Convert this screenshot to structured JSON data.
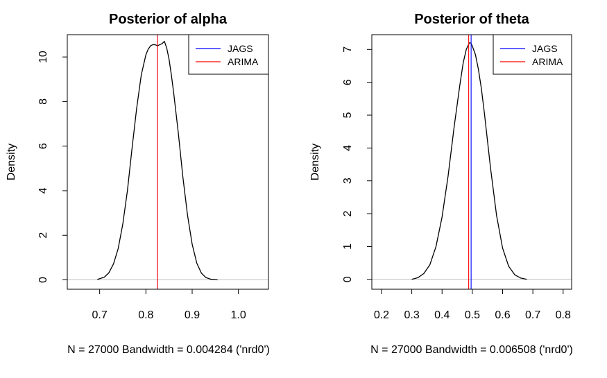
{
  "chart_data": [
    {
      "type": "line",
      "title": "Posterior of alpha",
      "xlabel": "N = 27000   Bandwidth = 0.004284 ('nrd0')",
      "ylabel": "Density",
      "xlim": [
        0.63,
        1.065
      ],
      "ylim": [
        -0.42,
        11.0
      ],
      "xticks": [
        "0.7",
        "0.8",
        "0.9",
        "1.0"
      ],
      "xtick_values": [
        0.7,
        0.8,
        0.9,
        1.0
      ],
      "yticks": [
        "0",
        "2",
        "4",
        "6",
        "8",
        "10"
      ],
      "ytick_values": [
        0,
        2,
        4,
        6,
        8,
        10
      ],
      "grid": false,
      "legend_position": "top-right",
      "legend": [
        {
          "label": "JAGS",
          "color": "#0000ff"
        },
        {
          "label": "ARIMA",
          "color": "#ff0000"
        }
      ],
      "baseline_color": "#bebebe",
      "density_color": "#000000",
      "vlines": [
        {
          "name": "JAGS",
          "x": 0.825,
          "color": "#0000ff"
        },
        {
          "name": "ARIMA",
          "x": 0.825,
          "color": "#ff0000"
        }
      ],
      "x": [
        0.695,
        0.71,
        0.72,
        0.73,
        0.74,
        0.75,
        0.76,
        0.77,
        0.78,
        0.79,
        0.8,
        0.805,
        0.81,
        0.815,
        0.82,
        0.825,
        0.83,
        0.835,
        0.84,
        0.845,
        0.85,
        0.855,
        0.86,
        0.87,
        0.88,
        0.89,
        0.9,
        0.91,
        0.92,
        0.93,
        0.94,
        0.955
      ],
      "y": [
        0.02,
        0.12,
        0.32,
        0.72,
        1.4,
        2.5,
        4.0,
        5.9,
        7.7,
        9.2,
        10.1,
        10.35,
        10.5,
        10.55,
        10.55,
        10.5,
        10.55,
        10.6,
        10.7,
        10.4,
        9.9,
        9.2,
        8.4,
        6.6,
        4.6,
        2.9,
        1.6,
        0.75,
        0.3,
        0.1,
        0.03,
        0.0
      ]
    },
    {
      "type": "line",
      "title": "Posterior of theta",
      "xlabel": "N = 27000   Bandwidth = 0.006508 ('nrd0')",
      "ylabel": "Density",
      "xlim": [
        0.168,
        0.828
      ],
      "ylim": [
        -0.3,
        7.45
      ],
      "xticks": [
        "0.2",
        "0.3",
        "0.4",
        "0.5",
        "0.6",
        "0.7",
        "0.8"
      ],
      "xtick_values": [
        0.2,
        0.3,
        0.4,
        0.5,
        0.6,
        0.7,
        0.8
      ],
      "yticks": [
        "0",
        "1",
        "2",
        "3",
        "4",
        "5",
        "6",
        "7"
      ],
      "ytick_values": [
        0,
        1,
        2,
        3,
        4,
        5,
        6,
        7
      ],
      "grid": false,
      "legend_position": "top-right",
      "legend": [
        {
          "label": "JAGS",
          "color": "#0000ff"
        },
        {
          "label": "ARIMA",
          "color": "#ff0000"
        }
      ],
      "baseline_color": "#bebebe",
      "density_color": "#000000",
      "vlines": [
        {
          "name": "JAGS",
          "x": 0.496,
          "color": "#0000ff"
        },
        {
          "name": "ARIMA",
          "x": 0.488,
          "color": "#ff0000"
        }
      ],
      "x": [
        0.3,
        0.32,
        0.34,
        0.36,
        0.38,
        0.4,
        0.42,
        0.44,
        0.46,
        0.47,
        0.48,
        0.49,
        0.495,
        0.5,
        0.51,
        0.52,
        0.53,
        0.54,
        0.56,
        0.58,
        0.6,
        0.62,
        0.64,
        0.66,
        0.68
      ],
      "y": [
        0.0,
        0.05,
        0.18,
        0.45,
        1.0,
        1.9,
        3.15,
        4.65,
        6.0,
        6.6,
        7.0,
        7.2,
        7.2,
        7.1,
        6.85,
        6.4,
        5.8,
        5.05,
        3.4,
        1.95,
        0.95,
        0.4,
        0.14,
        0.04,
        0.0
      ]
    }
  ]
}
